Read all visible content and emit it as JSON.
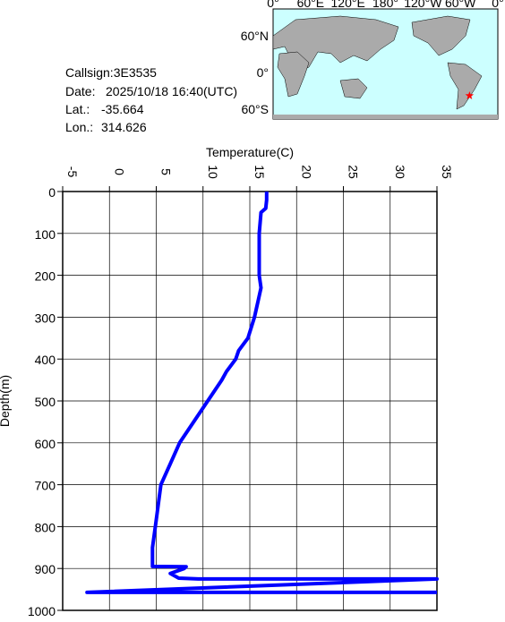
{
  "info": {
    "callsign": "Callsign:3E3535",
    "date_label": "Date:",
    "date": "2025/10/18 16:40(UTC)",
    "lat_label": "Lat.:",
    "lat": -35.664,
    "lon_label": "Lon.:",
    "lon": 314.626
  },
  "map": {
    "lon_labels": [
      "0°",
      "60°E",
      "120°E",
      "180°",
      "120°W",
      "60°W",
      "0°"
    ],
    "lat_labels": [
      "60°N",
      "0°",
      "60°S"
    ]
  },
  "chart_data": {
    "type": "line",
    "x_label": "Temperature(C)",
    "y_label": "Depth(m)",
    "xlim": [
      -5,
      35
    ],
    "xticks": [
      -5,
      0,
      5,
      10,
      15,
      20,
      25,
      30,
      35
    ],
    "ylim": [
      1000,
      0
    ],
    "yticks": [
      0,
      100,
      200,
      300,
      400,
      500,
      600,
      700,
      800,
      900,
      1000
    ],
    "grid": true,
    "depth": [
      0,
      20,
      40,
      50,
      100,
      200,
      230,
      260,
      280,
      300,
      350,
      380,
      400,
      430,
      450,
      500,
      550,
      600,
      650,
      700,
      750,
      800,
      850,
      895,
      896,
      900,
      912,
      923,
      925,
      925,
      925,
      957,
      957,
      957
    ],
    "series": [
      {
        "name": "Temperature",
        "color": "#0000ff",
        "values": [
          16.8,
          16.8,
          16.7,
          16.2,
          16.0,
          16.0,
          16.2,
          15.9,
          15.7,
          15.5,
          14.8,
          13.8,
          13.5,
          12.5,
          12.0,
          10.5,
          9.0,
          7.5,
          6.5,
          5.5,
          5.2,
          4.9,
          4.6,
          4.6,
          8.2,
          8.0,
          6.5,
          7.4,
          9.5,
          28.7,
          35,
          -2.4,
          9.7,
          35
        ]
      }
    ]
  }
}
